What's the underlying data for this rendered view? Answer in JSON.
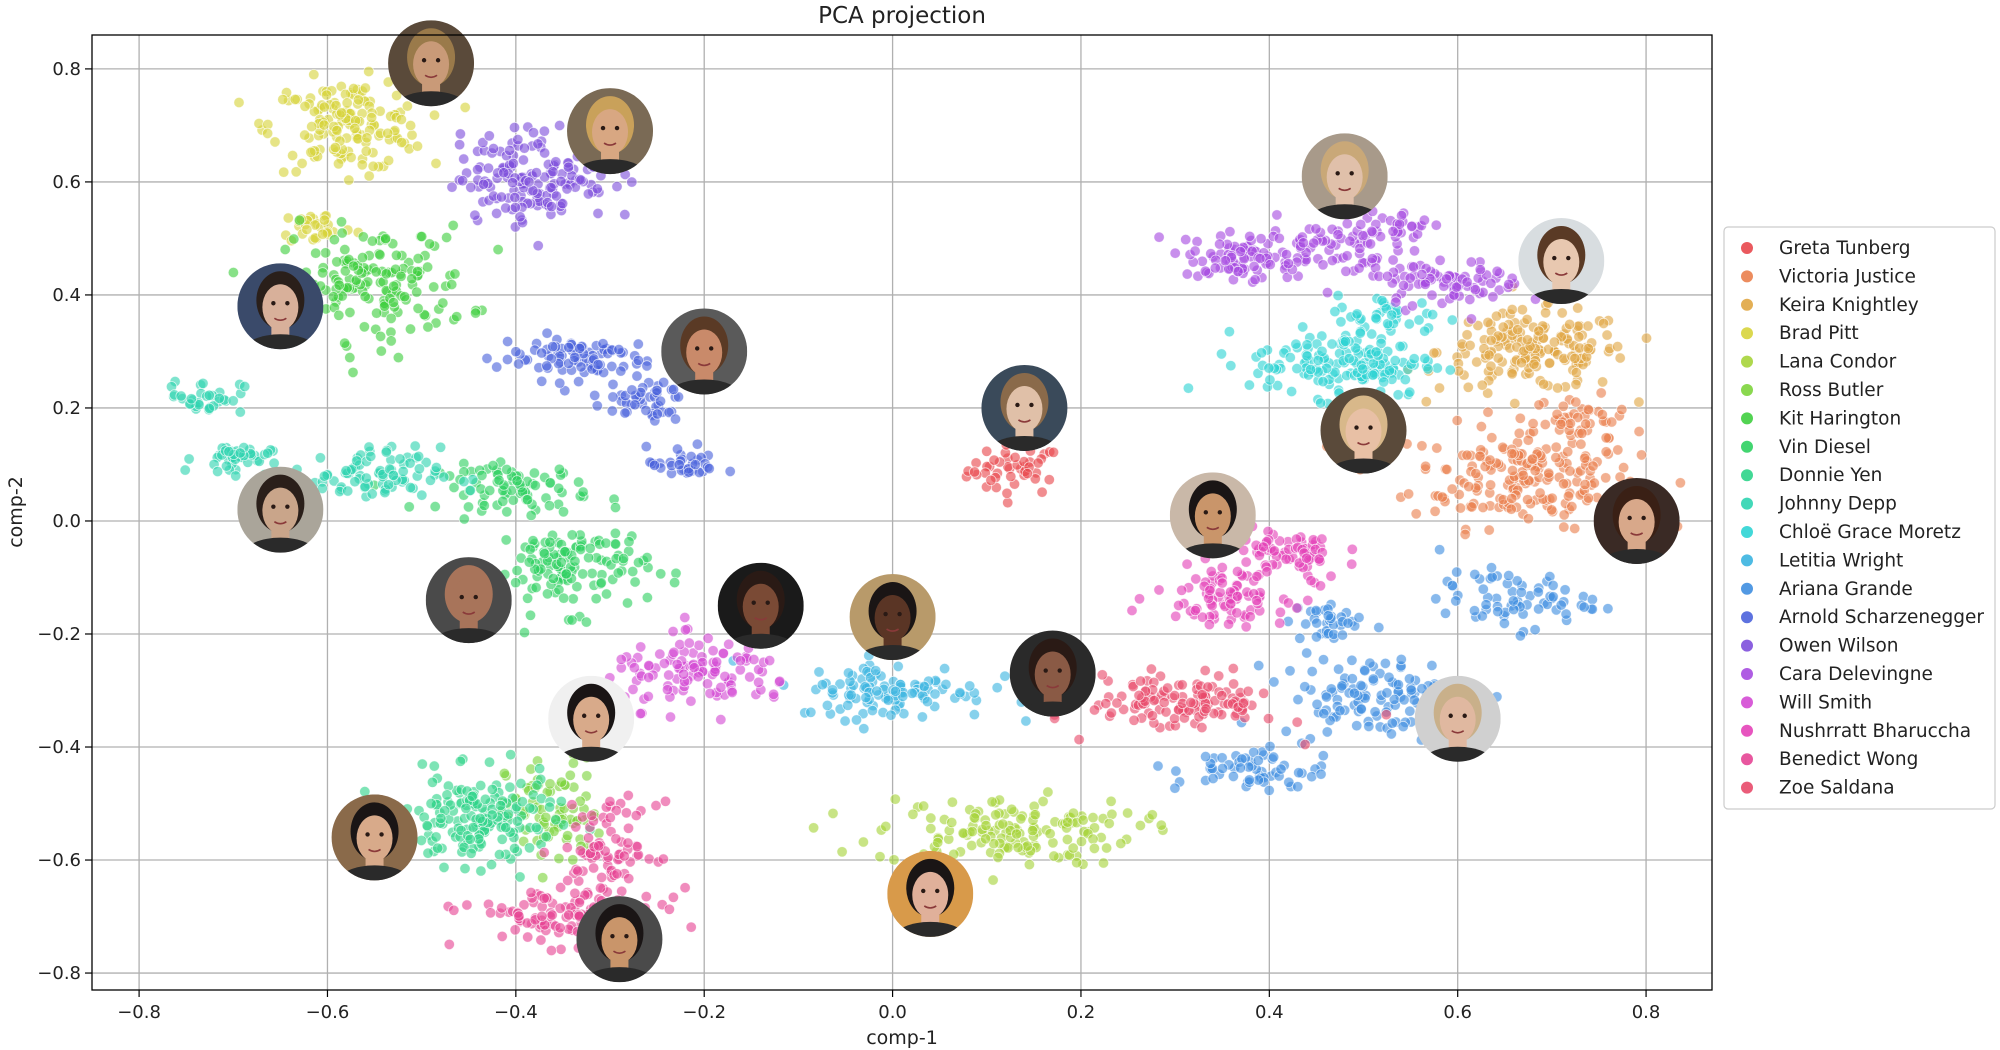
{
  "chart_data": {
    "type": "scatter",
    "title": "PCA projection",
    "xlabel": "comp-1",
    "ylabel": "comp-2",
    "xlim": [
      -0.85,
      0.87
    ],
    "ylim": [
      -0.83,
      0.86
    ],
    "xticks": [
      -0.8,
      -0.6,
      -0.4,
      -0.2,
      0.0,
      0.2,
      0.4,
      0.6,
      0.8
    ],
    "yticks": [
      -0.8,
      -0.6,
      -0.4,
      -0.2,
      0.0,
      0.2,
      0.4,
      0.6,
      0.8
    ],
    "xtick_labels": [
      "−0.8",
      "−0.6",
      "−0.4",
      "−0.2",
      "0.0",
      "0.2",
      "0.4",
      "0.6",
      "0.8"
    ],
    "ytick_labels": [
      "−0.8",
      "−0.6",
      "−0.4",
      "−0.2",
      "0.0",
      "0.2",
      "0.4",
      "0.6",
      "0.8"
    ],
    "grid": true,
    "legend_position": "right",
    "series": [
      {
        "name": "Greta Tunberg",
        "color": "#e8474c",
        "clusters": [
          {
            "cx": 0.13,
            "cy": 0.09,
            "sx": 0.025,
            "sy": 0.022,
            "n": 45
          }
        ]
      },
      {
        "name": "Victoria Justice",
        "color": "#ea7f4d",
        "clusters": [
          {
            "cx": 0.67,
            "cy": 0.08,
            "sx": 0.06,
            "sy": 0.045,
            "n": 200
          },
          {
            "cx": 0.73,
            "cy": 0.18,
            "sx": 0.025,
            "sy": 0.02,
            "n": 40
          }
        ]
      },
      {
        "name": "Keira Knightley",
        "color": "#e0a643",
        "clusters": [
          {
            "cx": 0.68,
            "cy": 0.3,
            "sx": 0.05,
            "sy": 0.035,
            "n": 180
          }
        ]
      },
      {
        "name": "Brad Pitt",
        "color": "#d7d43c",
        "clusters": [
          {
            "cx": -0.58,
            "cy": 0.7,
            "sx": 0.04,
            "sy": 0.04,
            "n": 160
          },
          {
            "cx": -0.61,
            "cy": 0.52,
            "sx": 0.02,
            "sy": 0.015,
            "n": 30
          }
        ]
      },
      {
        "name": "Lana Condor",
        "color": "#a6d43a",
        "clusters": [
          {
            "cx": 0.12,
            "cy": -0.55,
            "sx": 0.07,
            "sy": 0.03,
            "n": 150
          }
        ]
      },
      {
        "name": "Ross Butler",
        "color": "#7dd43c",
        "clusters": [
          {
            "cx": -0.36,
            "cy": -0.52,
            "sx": 0.025,
            "sy": 0.05,
            "n": 80
          }
        ]
      },
      {
        "name": "Kit Harington",
        "color": "#3fce3f",
        "clusters": [
          {
            "cx": -0.55,
            "cy": 0.42,
            "sx": 0.05,
            "sy": 0.05,
            "n": 160
          }
        ]
      },
      {
        "name": "Vin Diesel",
        "color": "#2ed061",
        "clusters": [
          {
            "cx": -0.4,
            "cy": 0.06,
            "sx": 0.04,
            "sy": 0.02,
            "n": 80
          },
          {
            "cx": -0.34,
            "cy": -0.08,
            "sx": 0.04,
            "sy": 0.04,
            "n": 130
          }
        ]
      },
      {
        "name": "Donnie Yen",
        "color": "#2ed489",
        "clusters": [
          {
            "cx": -0.44,
            "cy": -0.53,
            "sx": 0.04,
            "sy": 0.04,
            "n": 170
          }
        ]
      },
      {
        "name": "Johnny Depp",
        "color": "#2ed4b0",
        "clusters": [
          {
            "cx": -0.73,
            "cy": 0.22,
            "sx": 0.02,
            "sy": 0.015,
            "n": 35
          },
          {
            "cx": -0.7,
            "cy": 0.11,
            "sx": 0.02,
            "sy": 0.013,
            "n": 40
          },
          {
            "cx": -0.56,
            "cy": 0.08,
            "sx": 0.04,
            "sy": 0.025,
            "n": 90
          }
        ]
      },
      {
        "name": "Chloë Grace Moretz",
        "color": "#2ed4d4",
        "clusters": [
          {
            "cx": 0.48,
            "cy": 0.28,
            "sx": 0.05,
            "sy": 0.03,
            "n": 150
          },
          {
            "cx": 0.53,
            "cy": 0.36,
            "sx": 0.03,
            "sy": 0.02,
            "n": 40
          }
        ]
      },
      {
        "name": "Letitia Wright",
        "color": "#3bb4e0",
        "clusters": [
          {
            "cx": 0.0,
            "cy": -0.3,
            "sx": 0.05,
            "sy": 0.025,
            "n": 110
          }
        ]
      },
      {
        "name": "Ariana Grande",
        "color": "#3f8ee0",
        "clusters": [
          {
            "cx": 0.51,
            "cy": -0.31,
            "sx": 0.05,
            "sy": 0.035,
            "n": 120
          },
          {
            "cx": 0.38,
            "cy": -0.44,
            "sx": 0.04,
            "sy": 0.02,
            "n": 60
          },
          {
            "cx": 0.66,
            "cy": -0.14,
            "sx": 0.04,
            "sy": 0.025,
            "n": 70
          },
          {
            "cx": 0.46,
            "cy": -0.18,
            "sx": 0.02,
            "sy": 0.02,
            "n": 35
          }
        ]
      },
      {
        "name": "Arnold Scharzenegger",
        "color": "#4b63dc",
        "clusters": [
          {
            "cx": -0.34,
            "cy": 0.29,
            "sx": 0.04,
            "sy": 0.02,
            "n": 90
          },
          {
            "cx": -0.27,
            "cy": 0.21,
            "sx": 0.025,
            "sy": 0.018,
            "n": 45
          },
          {
            "cx": -0.22,
            "cy": 0.1,
            "sx": 0.02,
            "sy": 0.015,
            "n": 35
          }
        ]
      },
      {
        "name": "Owen Wilson",
        "color": "#7e4fdc",
        "clusters": [
          {
            "cx": -0.38,
            "cy": 0.61,
            "sx": 0.04,
            "sy": 0.04,
            "n": 160
          }
        ]
      },
      {
        "name": "Cara Delevingne",
        "color": "#a64be0",
        "clusters": [
          {
            "cx": 0.43,
            "cy": 0.48,
            "sx": 0.05,
            "sy": 0.025,
            "n": 100
          },
          {
            "cx": 0.36,
            "cy": 0.46,
            "sx": 0.025,
            "sy": 0.025,
            "n": 50
          },
          {
            "cx": 0.59,
            "cy": 0.42,
            "sx": 0.04,
            "sy": 0.02,
            "n": 80
          },
          {
            "cx": 0.53,
            "cy": 0.52,
            "sx": 0.02,
            "sy": 0.015,
            "n": 30
          }
        ]
      },
      {
        "name": "Will Smith",
        "color": "#d44ad4",
        "clusters": [
          {
            "cx": -0.2,
            "cy": -0.27,
            "sx": 0.05,
            "sy": 0.03,
            "n": 120
          }
        ]
      },
      {
        "name": "Nushrratt Bharuccha",
        "color": "#e442b8",
        "clusters": [
          {
            "cx": 0.42,
            "cy": -0.06,
            "sx": 0.03,
            "sy": 0.025,
            "n": 70
          },
          {
            "cx": 0.35,
            "cy": -0.13,
            "sx": 0.035,
            "sy": 0.025,
            "n": 90
          }
        ]
      },
      {
        "name": "Benedict Wong",
        "color": "#e64595",
        "clusters": [
          {
            "cx": -0.3,
            "cy": -0.58,
            "sx": 0.025,
            "sy": 0.04,
            "n": 80
          },
          {
            "cx": -0.35,
            "cy": -0.7,
            "sx": 0.05,
            "sy": 0.025,
            "n": 110
          }
        ]
      },
      {
        "name": "Zoe Saldana",
        "color": "#e84a6a",
        "clusters": [
          {
            "cx": 0.31,
            "cy": -0.32,
            "sx": 0.05,
            "sy": 0.025,
            "n": 130
          }
        ]
      }
    ],
    "portraits": [
      {
        "label": "Brad Pitt",
        "x": -0.49,
        "y": 0.81,
        "skin": "#c99a78",
        "hair": "#9a7a4a",
        "bg": "#5a4a3a"
      },
      {
        "label": "Owen Wilson",
        "x": -0.3,
        "y": 0.69,
        "skin": "#d8a782",
        "hair": "#c9a15a",
        "bg": "#7a6a55"
      },
      {
        "label": "Kit Harington",
        "x": -0.65,
        "y": 0.38,
        "skin": "#d8b09a",
        "hair": "#2a1f1a",
        "bg": "#3a4a6a"
      },
      {
        "label": "Arnold Scharzenegger",
        "x": -0.2,
        "y": 0.3,
        "skin": "#c98a6a",
        "hair": "#5a3a25",
        "bg": "#5a5a5a"
      },
      {
        "label": "Johnny Depp",
        "x": -0.65,
        "y": 0.02,
        "skin": "#c9a58a",
        "hair": "#2a1f1a",
        "bg": "#aaa59a"
      },
      {
        "label": "Vin Diesel",
        "x": -0.45,
        "y": -0.14,
        "skin": "#a8745a",
        "hair": "#a8745a",
        "bg": "#4a4a4a"
      },
      {
        "label": "Will Smith",
        "x": -0.14,
        "y": -0.15,
        "skin": "#7a4a35",
        "hair": "#2a1a15",
        "bg": "#1a1a1a"
      },
      {
        "label": "Letitia Wright",
        "x": 0.0,
        "y": -0.17,
        "skin": "#5a3525",
        "hair": "#1a1515",
        "bg": "#b89a6a"
      },
      {
        "label": "Greta Tunberg",
        "x": 0.14,
        "y": 0.2,
        "skin": "#e0c0a8",
        "hair": "#8a6a4a",
        "bg": "#3a4a5a"
      },
      {
        "label": "Zoe Saldana",
        "x": 0.17,
        "y": -0.27,
        "skin": "#8a5a45",
        "hair": "#2a1a15",
        "bg": "#2a2a2a"
      },
      {
        "label": "Ross Butler",
        "x": -0.32,
        "y": -0.35,
        "skin": "#d8aa8a",
        "hair": "#1a1515",
        "bg": "#f0f0f0"
      },
      {
        "label": "Donnie Yen",
        "x": -0.55,
        "y": -0.56,
        "skin": "#d8aa8a",
        "hair": "#1a1515",
        "bg": "#8a6a4a"
      },
      {
        "label": "Benedict Wong",
        "x": -0.29,
        "y": -0.74,
        "skin": "#c9956a",
        "hair": "#1a1515",
        "bg": "#4a4a4a"
      },
      {
        "label": "Lana Condor",
        "x": 0.04,
        "y": -0.66,
        "skin": "#e0b09a",
        "hair": "#1a1515",
        "bg": "#d89a4a"
      },
      {
        "label": "Cara Delevingne",
        "x": 0.48,
        "y": 0.61,
        "skin": "#e0c0aa",
        "hair": "#c9a878",
        "bg": "#a89a8a"
      },
      {
        "label": "Keira Knightley",
        "x": 0.71,
        "y": 0.46,
        "skin": "#e8c8b0",
        "hair": "#5a3a25",
        "bg": "#d8dde0"
      },
      {
        "label": "Chloë Grace Moretz",
        "x": 0.5,
        "y": 0.16,
        "skin": "#e8c0a5",
        "hair": "#d8b88a",
        "bg": "#5a4a3a"
      },
      {
        "label": "Nushrratt Bharuccha",
        "x": 0.34,
        "y": 0.01,
        "skin": "#c9956a",
        "hair": "#1a1515",
        "bg": "#c9b8a8"
      },
      {
        "label": "Victoria Justice",
        "x": 0.79,
        "y": 0.0,
        "skin": "#d8a88a",
        "hair": "#3a2015",
        "bg": "#3a2a25"
      },
      {
        "label": "Ariana Grande",
        "x": 0.6,
        "y": -0.35,
        "skin": "#e0b8a0",
        "hair": "#c9b08a",
        "bg": "#d0d0d0"
      }
    ]
  }
}
